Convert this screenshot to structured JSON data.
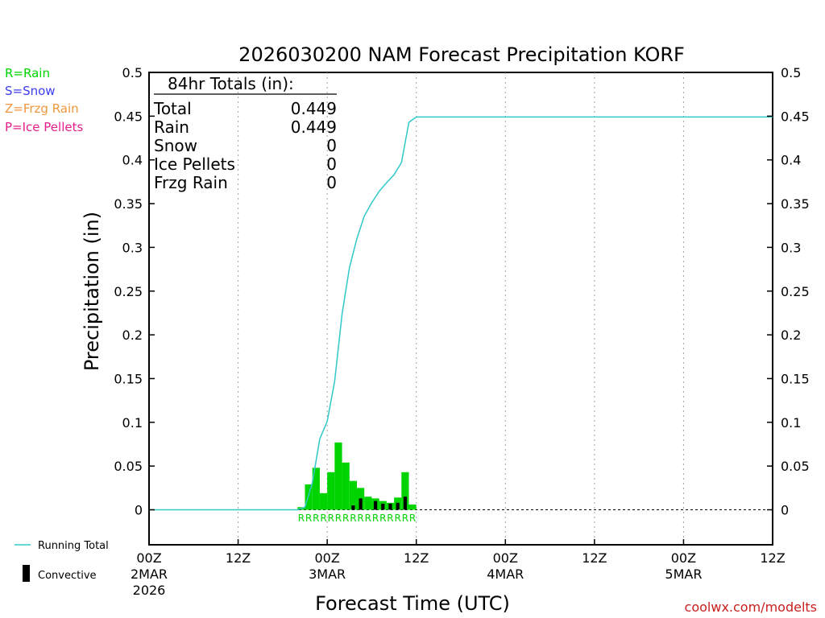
{
  "colors": {
    "rain": "#00d400",
    "snow": "#3c3cf0",
    "frzg_rain": "#f0963c",
    "ice_pellets": "#e61e8c",
    "running_total": "#30c8c8",
    "convective": "#000000",
    "credit": "#c81e1e",
    "grid": "#a0a0a0"
  },
  "legend_ptype": {
    "rain": "R=Rain",
    "snow": "S=Snow",
    "frzg_rain": "Z=Frzg Rain",
    "ice_pellets": "P=Ice Pellets"
  },
  "totals": {
    "header": "84hr Totals (in):",
    "rows": [
      {
        "label": "Total",
        "value": "0.449"
      },
      {
        "label": "Rain",
        "value": "0.449"
      },
      {
        "label": "Snow",
        "value": "0"
      },
      {
        "label": "Ice Pellets",
        "value": "0"
      },
      {
        "label": "Frzg Rain",
        "value": "0"
      }
    ]
  },
  "legend_bottom": {
    "running_total": "Running Total",
    "convective": "Convective"
  },
  "credit": "coolwx.com/modelts",
  "chart_data": {
    "type": "bar",
    "title": "2026030200 NAM Forecast Precipitation KORF",
    "xlabel": "Forecast Time (UTC)",
    "ylabel": "Precipitation (in)",
    "xlim": [
      0,
      84
    ],
    "ylim": [
      -0.04,
      0.5
    ],
    "y_ticks": [
      0,
      0.05,
      0.1,
      0.15,
      0.2,
      0.25,
      0.3,
      0.35,
      0.4,
      0.45,
      0.5
    ],
    "y_tick_labels": [
      "0",
      "0.05",
      "0.1",
      "0.15",
      "0.2",
      "0.25",
      "0.3",
      "0.35",
      "0.4",
      "0.45",
      "0.5"
    ],
    "x_ticks": [
      {
        "hour": 0,
        "lines": [
          "00Z",
          "2MAR",
          "2026"
        ]
      },
      {
        "hour": 12,
        "lines": [
          "12Z"
        ]
      },
      {
        "hour": 24,
        "lines": [
          "00Z",
          "3MAR"
        ]
      },
      {
        "hour": 36,
        "lines": [
          "12Z"
        ]
      },
      {
        "hour": 48,
        "lines": [
          "00Z",
          "4MAR"
        ]
      },
      {
        "hour": 60,
        "lines": [
          "12Z"
        ]
      },
      {
        "hour": 72,
        "lines": [
          "00Z",
          "5MAR"
        ]
      },
      {
        "hour": 84,
        "lines": [
          "12Z"
        ]
      }
    ],
    "grid_x_hours": [
      12,
      24,
      36,
      48,
      60,
      72
    ],
    "bar_width_hours": 1,
    "hourly_precip": {
      "hours": [
        21,
        22,
        23,
        24,
        25,
        26,
        27,
        28,
        29,
        30,
        31,
        32,
        33,
        34,
        35,
        36
      ],
      "values": [
        0.003,
        0.029,
        0.048,
        0.019,
        0.043,
        0.077,
        0.054,
        0.033,
        0.025,
        0.015,
        0.013,
        0.01,
        0.008,
        0.014,
        0.043,
        0.006
      ],
      "convective": [
        0,
        0,
        0,
        0,
        0,
        0,
        0,
        0.005,
        0.013,
        0,
        0.01,
        0.007,
        0.007,
        0.008,
        0.015,
        0
      ],
      "ptype_labels": [
        "R",
        "R",
        "R",
        "R",
        "R",
        "R",
        "R",
        "R",
        "R",
        "R",
        "R",
        "R",
        "R",
        "R",
        "R",
        "R"
      ]
    },
    "series": [
      {
        "name": "Running Total",
        "x": [
          0,
          20,
          21,
          22,
          23,
          24,
          25,
          26,
          27,
          28,
          29,
          30,
          31,
          32,
          33,
          34,
          35,
          36,
          84
        ],
        "values": [
          0,
          0,
          0.003,
          0.031,
          0.081,
          0.101,
          0.147,
          0.224,
          0.277,
          0.31,
          0.336,
          0.351,
          0.364,
          0.374,
          0.383,
          0.397,
          0.443,
          0.449,
          0.449
        ]
      }
    ]
  }
}
